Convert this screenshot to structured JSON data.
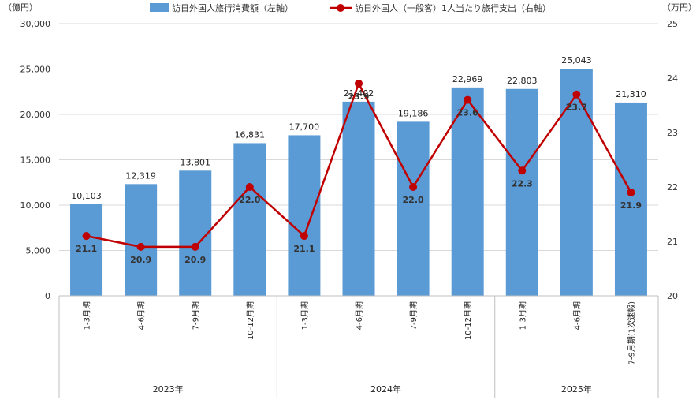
{
  "chart_data": {
    "type": "bar",
    "legend_position": "top",
    "left_unit": "（億円）",
    "right_unit": "（万円）",
    "categories": [
      "1-3月期",
      "4-6月期",
      "7-9月期",
      "10-12月期",
      "1-3月期",
      "4-6月期",
      "7-9月期",
      "10-12月期",
      "1-3月期",
      "4-6月期",
      "7-9月期(1次速報)"
    ],
    "year_groups": [
      {
        "label": "2023年",
        "count": 4
      },
      {
        "label": "2024年",
        "count": 4
      },
      {
        "label": "2025年",
        "count": 3
      }
    ],
    "y_left": {
      "min": 0,
      "max": 30000,
      "step": 5000,
      "ticks": [
        "0",
        "5,000",
        "10,000",
        "15,000",
        "20,000",
        "25,000",
        "30,000"
      ]
    },
    "y_right": {
      "min": 20,
      "max": 25,
      "step": 1,
      "ticks": [
        "20",
        "21",
        "22",
        "23",
        "24",
        "25"
      ]
    },
    "gridlines": true,
    "series": [
      {
        "name": "訪日外国人旅行消費額（左軸）",
        "type": "bar",
        "axis": "left",
        "color": "#5b9bd5",
        "values": [
          10103,
          12319,
          13801,
          16831,
          17700,
          21402,
          19186,
          22969,
          22803,
          25043,
          21310
        ],
        "labels": [
          "10,103",
          "12,319",
          "13,801",
          "16,831",
          "17,700",
          "21,402",
          "19,186",
          "22,969",
          "22,803",
          "25,043",
          "21,310"
        ]
      },
      {
        "name": "訪日外国人（一般客）1人当たり旅行支出（右軸）",
        "type": "line",
        "axis": "right",
        "color": "#c00000",
        "values": [
          21.1,
          20.9,
          20.9,
          22.0,
          21.1,
          23.9,
          22.0,
          23.6,
          22.3,
          23.7,
          21.9
        ],
        "labels": [
          "21.1",
          "20.9",
          "20.9",
          "22.0",
          "21.1",
          "23.9",
          "22.0",
          "23.6",
          "22.3",
          "23.7",
          "21.9"
        ]
      }
    ]
  }
}
